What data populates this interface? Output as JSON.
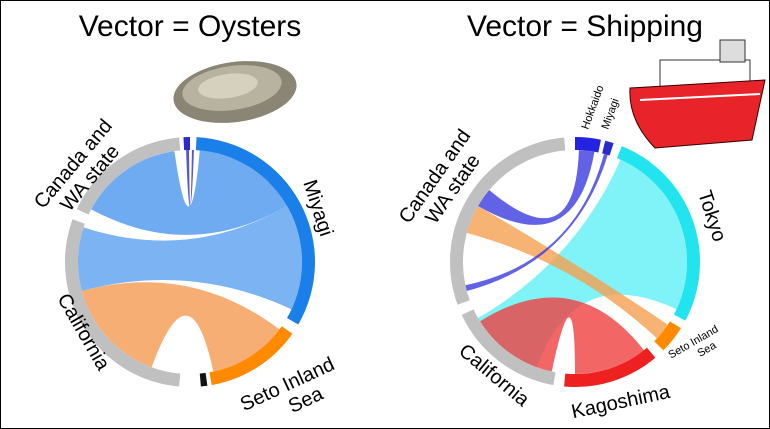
{
  "panels": [
    {
      "title": "Vector = Oysters",
      "nodes": [
        {
          "label": [
            "Canada and",
            "WA state"
          ]
        },
        {
          "label": [
            "Miyagi"
          ]
        },
        {
          "label": [
            "California"
          ]
        },
        {
          "label": [
            "Seto Inland",
            "Sea"
          ]
        }
      ]
    },
    {
      "title": "Vector = Shipping",
      "nodes": [
        {
          "label": [
            "Canada and",
            "WA state"
          ]
        },
        {
          "label": [
            "Hokkaido"
          ]
        },
        {
          "label": [
            "Miyagi"
          ]
        },
        {
          "label": [
            "Tokyo"
          ]
        },
        {
          "label": [
            "California"
          ]
        },
        {
          "label": [
            "Seto Inland",
            "Sea"
          ]
        },
        {
          "label": [
            "Kagoshima"
          ]
        }
      ]
    }
  ]
}
